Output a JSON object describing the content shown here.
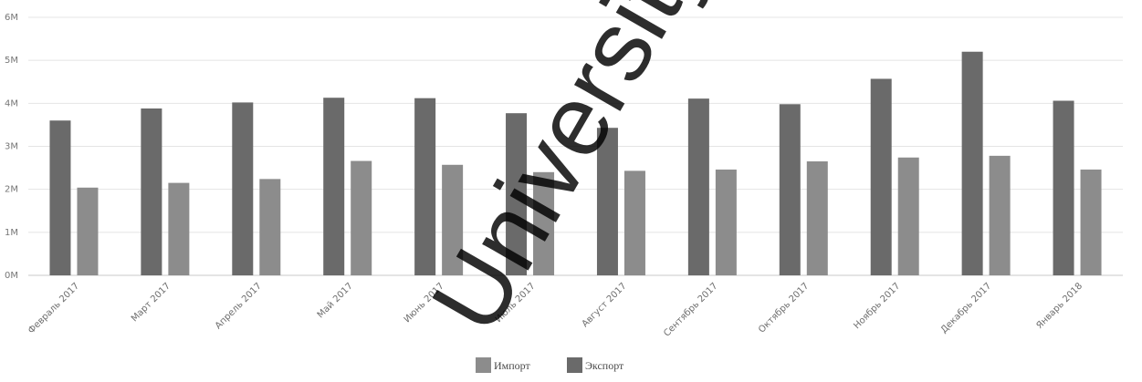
{
  "chart_data": {
    "type": "bar",
    "categories": [
      "Февраль 2017",
      "Март 2017",
      "Апрель 2017",
      "Май 2017",
      "Июнь 2017",
      "Июль 2017",
      "Август 2017",
      "Сентябрь 2017",
      "Октябрь 2017",
      "Ноябрь 2017",
      "Декабрь 2017",
      "Январь 2018"
    ],
    "series": [
      {
        "name": "Экспорт",
        "color": "#6a6a6a",
        "values": [
          3.6,
          3.88,
          4.02,
          4.13,
          4.12,
          3.77,
          3.43,
          4.11,
          3.98,
          4.57,
          5.2,
          4.06
        ]
      },
      {
        "name": "Импорт",
        "color": "#8c8c8c",
        "values": [
          2.04,
          2.15,
          2.24,
          2.66,
          2.57,
          2.4,
          2.43,
          2.46,
          2.65,
          2.74,
          2.78,
          2.46
        ]
      }
    ],
    "y_ticks": [
      "0M",
      "1M",
      "2M",
      "3M",
      "4M",
      "5M",
      "6M"
    ],
    "ylim": [
      0,
      6
    ],
    "grid": true,
    "legend_position": "bottom-center",
    "legend_order": [
      "Импорт",
      "Экспорт"
    ],
    "title": "",
    "xlabel": "",
    "ylabel": ""
  },
  "watermark": {
    "text": "University",
    "color": "#000000"
  }
}
